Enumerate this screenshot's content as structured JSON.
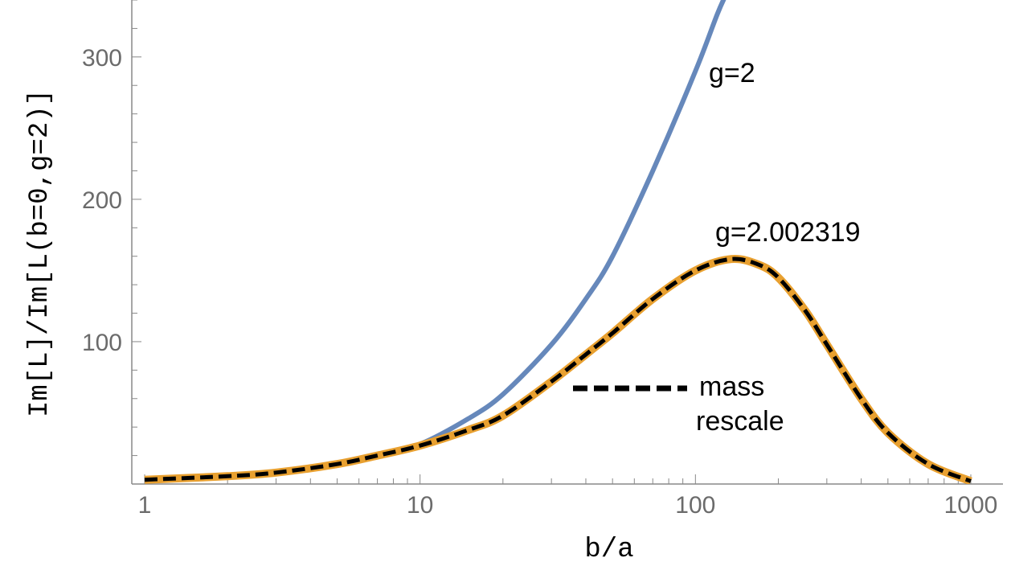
{
  "chart_data": {
    "type": "line",
    "xlabel": "b/a",
    "ylabel": "Im[L]/Im[L(b=0,g=2)]",
    "x_scale": "log",
    "xlim": [
      1,
      1000
    ],
    "ylim": [
      0,
      340
    ],
    "x_ticks": [
      1,
      10,
      100,
      1000
    ],
    "x_tick_labels": [
      "1",
      "10",
      "100",
      "1000"
    ],
    "y_ticks": [
      100,
      200,
      300
    ],
    "y_tick_labels": [
      "100",
      "200",
      "300"
    ],
    "grid": false,
    "series": [
      {
        "name": "g=2",
        "color": "#6688bb",
        "style": "solid",
        "x": [
          1,
          2,
          3,
          5,
          7,
          10,
          15,
          20,
          30,
          40,
          50,
          70,
          100,
          120,
          130
        ],
        "y": [
          3,
          5.5,
          8,
          14,
          20,
          28,
          46,
          63,
          98,
          130,
          160,
          220,
          290,
          330,
          345
        ]
      },
      {
        "name": "g=2.002319",
        "color": "#e8a030",
        "style": "solid",
        "x": [
          1,
          2,
          3,
          5,
          7,
          10,
          15,
          20,
          30,
          40,
          50,
          70,
          100,
          135,
          170,
          200,
          250,
          300,
          400,
          500,
          700,
          1000
        ],
        "y": [
          3,
          5.5,
          8,
          14,
          20,
          27,
          38,
          48,
          72,
          91,
          106,
          130,
          150,
          158,
          154,
          145,
          122,
          98,
          60,
          36,
          14,
          2
        ]
      },
      {
        "name": "mass rescale",
        "color": "#000000",
        "style": "dashed",
        "x": [
          1,
          2,
          3,
          5,
          7,
          10,
          15,
          20,
          30,
          40,
          50,
          70,
          100,
          135,
          170,
          200,
          250,
          300,
          400,
          500,
          700,
          1000
        ],
        "y": [
          3,
          5.5,
          8,
          14,
          20,
          27,
          38,
          48,
          72,
          91,
          106,
          130,
          150,
          158,
          154,
          145,
          122,
          98,
          60,
          36,
          14,
          2
        ]
      }
    ],
    "annotations": {
      "g2": "g=2",
      "g_anom": "g=2.002319",
      "legend_line1": "mass",
      "legend_line2": "rescale"
    }
  }
}
